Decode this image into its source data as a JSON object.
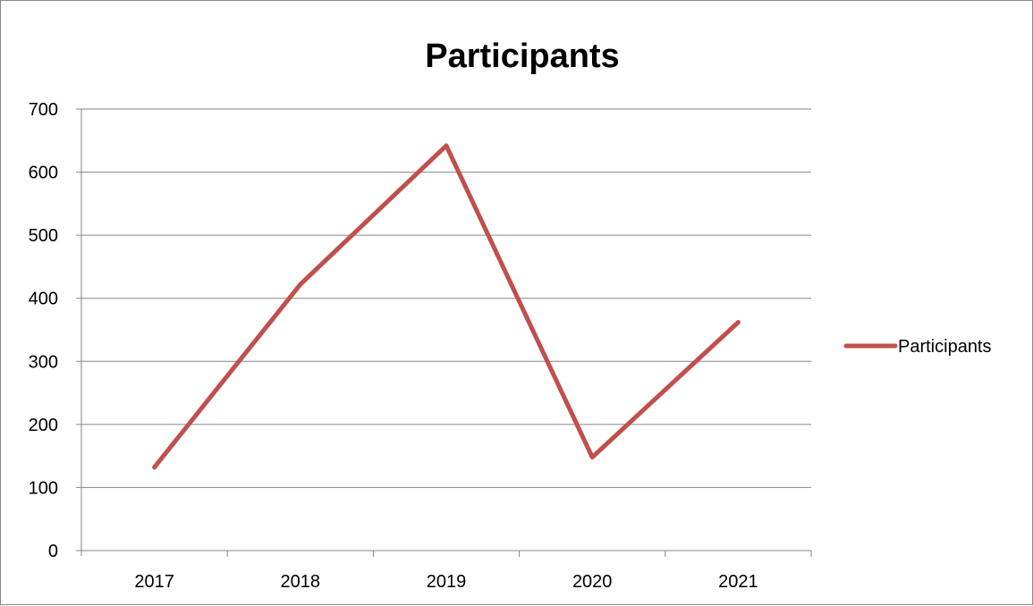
{
  "chart_data": {
    "type": "line",
    "title": "Participants",
    "categories": [
      "2017",
      "2018",
      "2019",
      "2020",
      "2021"
    ],
    "series": [
      {
        "name": "Participants",
        "values": [
          132,
          422,
          642,
          148,
          362
        ]
      }
    ],
    "ylim": [
      0,
      700
    ],
    "yticks": [
      "0",
      "100",
      "200",
      "300",
      "400",
      "500",
      "600",
      "700"
    ],
    "grid": true,
    "legend_position": "right",
    "colors": {
      "series": "#C0504D",
      "grid": "#868686",
      "axis": "#868686"
    }
  }
}
